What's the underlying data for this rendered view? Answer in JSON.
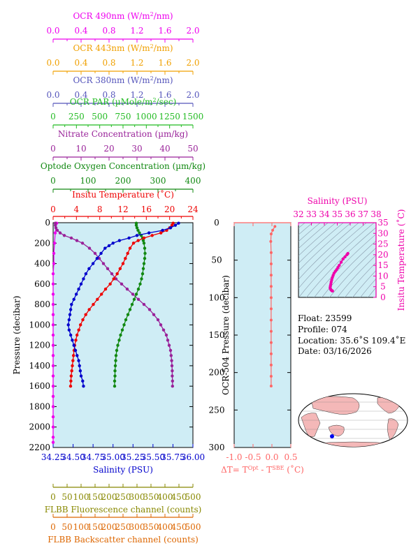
{
  "colors": {
    "ocr490": "#ee00ee",
    "ocr443": "#f0a000",
    "ocr380": "#5555bb",
    "par": "#22bb22",
    "nitrate": "#992299",
    "oxygen": "#118811",
    "temperature": "#ee0000",
    "salinity": "#0000cc",
    "fluor": "#888800",
    "backscatter": "#dd6600",
    "dt": "#ff6666",
    "ts": "#ee00aa",
    "panel": "#cfedf5",
    "land": "#f4b8b8",
    "ocean": "#ffffff"
  },
  "top_axes": [
    {
      "key": "ocr490",
      "title_pre": "OCR 490nm (W/m",
      "title_sup": "2",
      "title_post": "/nm)",
      "ticks": [
        "0.0",
        "0.4",
        "0.8",
        "1.2",
        "1.6",
        "2.0"
      ]
    },
    {
      "key": "ocr443",
      "title_pre": "OCR 443nm (W/m",
      "title_sup": "2",
      "title_post": "/nm)",
      "ticks": [
        "0.0",
        "0.4",
        "0.8",
        "1.2",
        "1.6",
        "2.0"
      ]
    },
    {
      "key": "ocr380",
      "title_pre": "OCR 380nm (W/m",
      "title_sup": "2",
      "title_post": "/nm)",
      "ticks": [
        "0.0",
        "0.4",
        "0.8",
        "1.2",
        "1.6",
        "2.0"
      ]
    },
    {
      "key": "par",
      "title_pre": "OCR PAR (µMole/m",
      "title_sup": "2",
      "title_post": "/sec)",
      "ticks": [
        "0",
        "250",
        "500",
        "750",
        "1000",
        "1250",
        "1500"
      ]
    },
    {
      "key": "nitrate",
      "title_pre": "Nitrate Concentration (µm/kg)",
      "title_sup": "",
      "title_post": "",
      "ticks": [
        "0",
        "10",
        "20",
        "30",
        "40",
        "50"
      ]
    },
    {
      "key": "oxygen",
      "title_pre": "Optode Oxygen Concentration (µm/kg)",
      "title_sup": "",
      "title_post": "",
      "ticks": [
        "0",
        "100",
        "200",
        "300",
        "400"
      ]
    },
    {
      "key": "temperature",
      "title_pre": "Insitu Temperature (˚C)",
      "title_sup": "",
      "title_post": "",
      "ticks": [
        "0",
        "4",
        "8",
        "12",
        "16",
        "20",
        "24"
      ]
    }
  ],
  "bottom_axes": [
    {
      "key": "salinity",
      "title": "Salinity (PSU)",
      "ticks": [
        "34.25",
        "34.50",
        "34.75",
        "35.00",
        "35.25",
        "35.50",
        "35.75",
        "36.00"
      ]
    },
    {
      "key": "fluor",
      "title": "FLBB Fluorescence channel (counts)",
      "ticks": [
        "0",
        "50",
        "100",
        "150",
        "200",
        "250",
        "300",
        "350",
        "400",
        "450",
        "500"
      ]
    },
    {
      "key": "backscatter",
      "title": "FLBB Backscatter channel (counts)",
      "ticks": [
        "0",
        "50",
        "100",
        "150",
        "200",
        "250",
        "300",
        "350",
        "400",
        "450",
        "500"
      ]
    }
  ],
  "main_y": {
    "label": "Pressure (decibar)",
    "ticks": [
      "0",
      "200",
      "400",
      "600",
      "800",
      "1000",
      "1200",
      "1400",
      "1600",
      "1800",
      "2000",
      "2200"
    ]
  },
  "dt_panel": {
    "y_label": "OCR-504 Pressure (decibar)",
    "y_ticks": [
      "0",
      "50",
      "100",
      "150",
      "200",
      "250",
      "300"
    ],
    "x_ticks": [
      "-1.0",
      "-0.5",
      "0.0",
      "0.5"
    ],
    "x_title_pre": "ΔT= T",
    "x_sup1": "Opt",
    "x_mid": " - T",
    "x_sup2": "SBE",
    "x_title_post": " (˚C)"
  },
  "ts_panel": {
    "x_title": "Salinity (PSU)",
    "x_ticks": [
      "32",
      "33",
      "34",
      "35",
      "36",
      "37",
      "38"
    ],
    "y_title": "Insitu Temperature (˚C)",
    "y_ticks": [
      "0",
      "5",
      "10",
      "15",
      "20",
      "25",
      "30",
      "35"
    ]
  },
  "info": {
    "float": "Float:  23599",
    "profile": "Profile:  074",
    "location": "Location:  35.6˚S  109.4˚E",
    "date": "Date:  03/16/2026"
  },
  "chart_data": [
    {
      "type": "line",
      "y_axis": "Pressure (decibar)",
      "ylim": [
        2200,
        0
      ],
      "series": [
        {
          "name": "Salinity (PSU)",
          "xlim": [
            34.25,
            36.0
          ],
          "points": [
            [
              35.82,
              5
            ],
            [
              35.78,
              25
            ],
            [
              35.72,
              50
            ],
            [
              35.62,
              75
            ],
            [
              35.45,
              100
            ],
            [
              35.3,
              125
            ],
            [
              35.2,
              150
            ],
            [
              35.08,
              175
            ],
            [
              35.0,
              200
            ],
            [
              34.95,
              225
            ],
            [
              34.9,
              250
            ],
            [
              34.85,
              300
            ],
            [
              34.8,
              350
            ],
            [
              34.75,
              400
            ],
            [
              34.7,
              450
            ],
            [
              34.66,
              500
            ],
            [
              34.63,
              550
            ],
            [
              34.6,
              600
            ],
            [
              34.57,
              650
            ],
            [
              34.54,
              700
            ],
            [
              34.51,
              750
            ],
            [
              34.48,
              800
            ],
            [
              34.47,
              850
            ],
            [
              34.46,
              900
            ],
            [
              34.45,
              950
            ],
            [
              34.44,
              1000
            ],
            [
              34.45,
              1050
            ],
            [
              34.47,
              1100
            ],
            [
              34.49,
              1150
            ],
            [
              34.51,
              1200
            ],
            [
              34.53,
              1250
            ],
            [
              34.55,
              1300
            ],
            [
              34.57,
              1350
            ],
            [
              34.58,
              1400
            ],
            [
              34.59,
              1450
            ],
            [
              34.6,
              1500
            ],
            [
              34.62,
              1550
            ],
            [
              34.63,
              1600
            ]
          ]
        },
        {
          "name": "Insitu Temperature (˚C)",
          "xlim": [
            0,
            24
          ],
          "points": [
            [
              20.6,
              5
            ],
            [
              20.4,
              25
            ],
            [
              20.0,
              50
            ],
            [
              19.5,
              75
            ],
            [
              18.5,
              100
            ],
            [
              17.0,
              125
            ],
            [
              15.6,
              150
            ],
            [
              14.6,
              175
            ],
            [
              13.8,
              200
            ],
            [
              13.2,
              250
            ],
            [
              12.8,
              300
            ],
            [
              12.4,
              350
            ],
            [
              12.0,
              400
            ],
            [
              11.5,
              450
            ],
            [
              11.0,
              500
            ],
            [
              10.4,
              550
            ],
            [
              9.8,
              600
            ],
            [
              9.0,
              650
            ],
            [
              8.3,
              700
            ],
            [
              7.6,
              750
            ],
            [
              6.9,
              800
            ],
            [
              6.2,
              850
            ],
            [
              5.6,
              900
            ],
            [
              5.1,
              950
            ],
            [
              4.7,
              1000
            ],
            [
              4.4,
              1050
            ],
            [
              4.1,
              1100
            ],
            [
              3.9,
              1150
            ],
            [
              3.7,
              1200
            ],
            [
              3.6,
              1250
            ],
            [
              3.5,
              1300
            ],
            [
              3.4,
              1350
            ],
            [
              3.3,
              1400
            ],
            [
              3.2,
              1450
            ],
            [
              3.1,
              1500
            ],
            [
              3.05,
              1550
            ],
            [
              3.0,
              1600
            ]
          ]
        },
        {
          "name": "Optode Oxygen Concentration (µm/kg)",
          "xlim": [
            0,
            400
          ],
          "points": [
            [
              238,
              5
            ],
            [
              238,
              25
            ],
            [
              240,
              50
            ],
            [
              243,
              75
            ],
            [
              247,
              100
            ],
            [
              252,
              125
            ],
            [
              256,
              150
            ],
            [
              258,
              175
            ],
            [
              260,
              200
            ],
            [
              262,
              250
            ],
            [
              263,
              300
            ],
            [
              262,
              350
            ],
            [
              260,
              400
            ],
            [
              258,
              450
            ],
            [
              256,
              500
            ],
            [
              253,
              550
            ],
            [
              249,
              600
            ],
            [
              244,
              650
            ],
            [
              238,
              700
            ],
            [
              232,
              750
            ],
            [
              226,
              800
            ],
            [
              220,
              850
            ],
            [
              214,
              900
            ],
            [
              208,
              950
            ],
            [
              203,
              1000
            ],
            [
              198,
              1050
            ],
            [
              193,
              1100
            ],
            [
              189,
              1150
            ],
            [
              185,
              1200
            ],
            [
              182,
              1250
            ],
            [
              180,
              1300
            ],
            [
              179,
              1350
            ],
            [
              178,
              1400
            ],
            [
              177,
              1450
            ],
            [
              177,
              1500
            ],
            [
              176,
              1550
            ],
            [
              176,
              1600
            ]
          ]
        },
        {
          "name": "Nitrate Concentration (µm/kg)",
          "xlim": [
            0,
            50
          ],
          "points": [
            [
              0.8,
              5
            ],
            [
              0.8,
              25
            ],
            [
              1.0,
              50
            ],
            [
              1.5,
              75
            ],
            [
              2.5,
              100
            ],
            [
              4.0,
              125
            ],
            [
              6.5,
              150
            ],
            [
              8.5,
              175
            ],
            [
              10.5,
              200
            ],
            [
              13.0,
              250
            ],
            [
              15.0,
              300
            ],
            [
              16.5,
              350
            ],
            [
              18.0,
              400
            ],
            [
              19.5,
              450
            ],
            [
              21.0,
              500
            ],
            [
              22.5,
              550
            ],
            [
              24.5,
              600
            ],
            [
              26.5,
              650
            ],
            [
              28.5,
              700
            ],
            [
              30.5,
              750
            ],
            [
              32.5,
              800
            ],
            [
              34.5,
              850
            ],
            [
              36.0,
              900
            ],
            [
              37.5,
              950
            ],
            [
              38.5,
              1000
            ],
            [
              39.5,
              1050
            ],
            [
              40.5,
              1100
            ],
            [
              41.0,
              1150
            ],
            [
              41.5,
              1200
            ],
            [
              42.0,
              1250
            ],
            [
              42.2,
              1300
            ],
            [
              42.4,
              1350
            ],
            [
              42.5,
              1400
            ],
            [
              42.6,
              1450
            ],
            [
              42.6,
              1500
            ],
            [
              42.7,
              1550
            ],
            [
              42.7,
              1600
            ]
          ]
        },
        {
          "name": "OCR 490nm (W/m2/nm)",
          "xlim": [
            0,
            2.0
          ],
          "points": [
            [
              0.05,
              5
            ],
            [
              0.03,
              100
            ],
            [
              0.02,
              200
            ],
            [
              0.01,
              300
            ],
            [
              0.01,
              400
            ],
            [
              0.0,
              500
            ],
            [
              0.0,
              600
            ],
            [
              0.0,
              700
            ],
            [
              0.0,
              800
            ],
            [
              0.0,
              900
            ],
            [
              0.0,
              1000
            ],
            [
              0.0,
              1100
            ],
            [
              0.0,
              1200
            ],
            [
              0.0,
              1300
            ],
            [
              0.0,
              1400
            ],
            [
              0.0,
              1500
            ],
            [
              0.0,
              1600
            ],
            [
              0.0,
              1700
            ],
            [
              0.0,
              1800
            ],
            [
              0.0,
              1900
            ],
            [
              0.0,
              2000
            ],
            [
              0.0,
              2100
            ],
            [
              0.0,
              2150
            ]
          ]
        }
      ]
    },
    {
      "type": "line",
      "x_label": "ΔT= TOpt - TSBE (˚C)",
      "y_label": "OCR-504 Pressure (decibar)",
      "xlim": [
        -1.0,
        0.5
      ],
      "ylim": [
        300,
        0
      ],
      "series": [
        {
          "name": "ΔT",
          "points": [
            [
              0.08,
              5
            ],
            [
              0.02,
              10
            ],
            [
              -0.02,
              15
            ],
            [
              -0.03,
              25
            ],
            [
              -0.02,
              40
            ],
            [
              -0.02,
              55
            ],
            [
              -0.02,
              70
            ],
            [
              -0.02,
              85
            ],
            [
              -0.02,
              100
            ],
            [
              -0.02,
              115
            ],
            [
              -0.02,
              130
            ],
            [
              -0.02,
              145
            ],
            [
              -0.02,
              160
            ],
            [
              -0.02,
              175
            ],
            [
              -0.02,
              190
            ],
            [
              -0.02,
              205
            ],
            [
              -0.02,
              218
            ]
          ]
        }
      ]
    },
    {
      "type": "scatter",
      "x_label": "Salinity (PSU)",
      "y_label": "Insitu Temperature (˚C)",
      "xlim": [
        32,
        38
      ],
      "ylim": [
        0,
        35
      ],
      "series": [
        {
          "name": "T-S",
          "points": [
            [
              35.82,
              20.6
            ],
            [
              35.75,
              20.0
            ],
            [
              35.6,
              19.0
            ],
            [
              35.45,
              18.0
            ],
            [
              35.3,
              16.5
            ],
            [
              35.15,
              15.0
            ],
            [
              35.05,
              14.0
            ],
            [
              34.95,
              13.0
            ],
            [
              34.85,
              12.2
            ],
            [
              34.75,
              11.3
            ],
            [
              34.68,
              10.3
            ],
            [
              34.62,
              9.3
            ],
            [
              34.57,
              8.2
            ],
            [
              34.53,
              7.2
            ],
            [
              34.5,
              6.2
            ],
            [
              34.47,
              5.3
            ],
            [
              34.45,
              4.5
            ],
            [
              34.48,
              3.9
            ],
            [
              34.52,
              3.5
            ],
            [
              34.56,
              3.3
            ],
            [
              34.6,
              3.1
            ],
            [
              34.63,
              3.0
            ]
          ]
        }
      ]
    }
  ]
}
